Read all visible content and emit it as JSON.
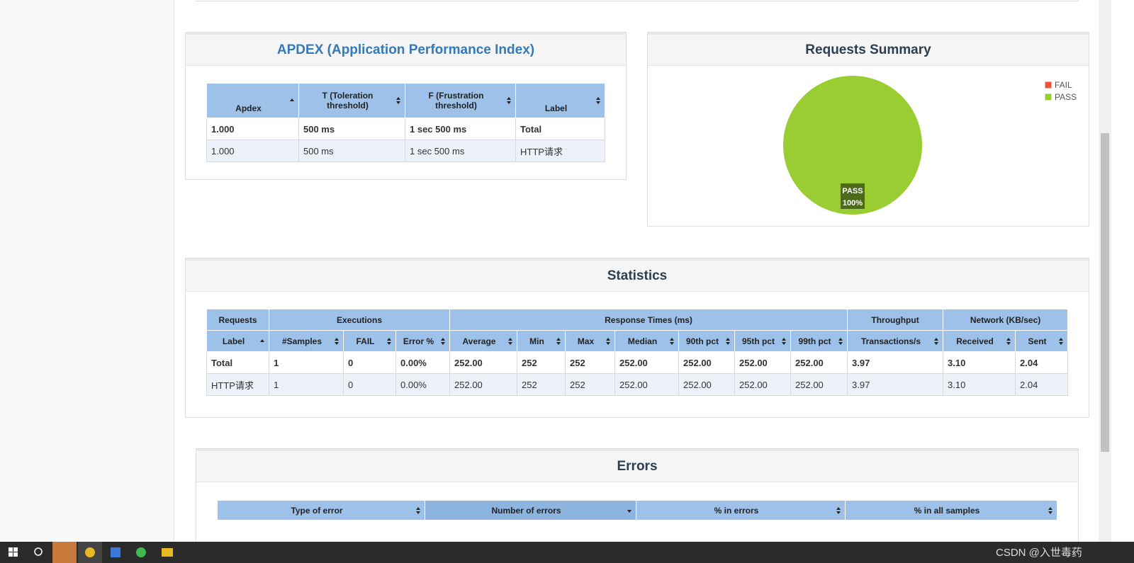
{
  "apdex": {
    "title": "APDEX (Application Performance Index)",
    "columns": [
      "Apdex",
      "T (Toleration threshold)",
      "F (Frustration threshold)",
      "Label"
    ],
    "rows": [
      [
        "1.000",
        "500 ms",
        "1 sec 500 ms",
        "Total"
      ],
      [
        "1.000",
        "500 ms",
        "1 sec 500 ms",
        "HTTP请求"
      ]
    ]
  },
  "requests_summary": {
    "type": "pie",
    "title": "Requests Summary",
    "series": [
      {
        "name": "FAIL",
        "color": "#f0533a",
        "value": 0
      },
      {
        "name": "PASS",
        "color": "#9acd32",
        "value": 100,
        "value_label": "100%"
      }
    ]
  },
  "statistics": {
    "title": "Statistics",
    "groups": [
      "Requests",
      "Executions",
      "Response Times (ms)",
      "Throughput",
      "Network (KB/sec)"
    ],
    "columns": [
      "Label",
      "#Samples",
      "FAIL",
      "Error %",
      "Average",
      "Min",
      "Max",
      "Median",
      "90th pct",
      "95th pct",
      "99th pct",
      "Transactions/s",
      "Received",
      "Sent"
    ],
    "rows": [
      [
        "Total",
        "1",
        "0",
        "0.00%",
        "252.00",
        "252",
        "252",
        "252.00",
        "252.00",
        "252.00",
        "252.00",
        "3.97",
        "3.10",
        "2.04"
      ],
      [
        "HTTP请求",
        "1",
        "0",
        "0.00%",
        "252.00",
        "252",
        "252",
        "252.00",
        "252.00",
        "252.00",
        "252.00",
        "3.97",
        "3.10",
        "2.04"
      ]
    ]
  },
  "errors": {
    "title": "Errors",
    "columns": [
      "Type of error",
      "Number of errors",
      "% in errors",
      "% in all samples"
    ]
  },
  "watermark": "CSDN @入世毒药"
}
